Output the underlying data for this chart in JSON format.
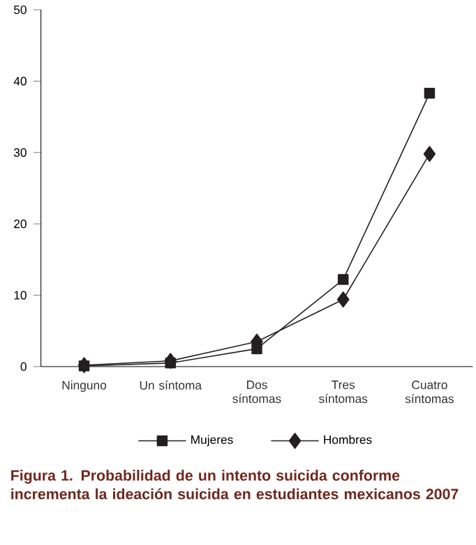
{
  "chart_data": {
    "type": "line",
    "title": "Figura 1. Probabilidad de un intento suicida conforme incrementa la ideación suicida en estudiantes mexicanos 2007",
    "categories": [
      "Ninguno",
      "Un síntoma",
      "Dos síntomas",
      "Tres síntomas",
      "Cuatro síntomas"
    ],
    "series": [
      {
        "name": "Mujeres",
        "color": "#231f20",
        "marker": "square",
        "values": [
          0.1,
          0.5,
          2.5,
          12.2,
          38.3
        ]
      },
      {
        "name": "Hombres",
        "color": "#231f20",
        "marker": "diamond",
        "values": [
          0.2,
          0.8,
          3.5,
          9.4,
          29.8
        ]
      }
    ],
    "ylim": [
      0,
      50
    ],
    "yticks": [
      0,
      10,
      20,
      30,
      40,
      50
    ],
    "grid": false,
    "legend": "bottom",
    "line_style": "solid"
  }
}
